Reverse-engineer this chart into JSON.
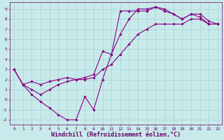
{
  "xlabel": "Windchill (Refroidissement éolien,°C)",
  "ylabel": "",
  "xlim": [
    -0.5,
    23.5
  ],
  "ylim": [
    -2.5,
    9.7
  ],
  "xticks": [
    0,
    1,
    2,
    3,
    4,
    5,
    6,
    7,
    8,
    9,
    10,
    11,
    12,
    13,
    14,
    15,
    16,
    17,
    18,
    19,
    20,
    21,
    22,
    23
  ],
  "yticks": [
    -2,
    -1,
    0,
    1,
    2,
    3,
    4,
    5,
    6,
    7,
    8,
    9
  ],
  "background_color": "#c8eaea",
  "grid_color": "#a0cccc",
  "line_color": "#880088",
  "marker": "D",
  "markersize": 1.8,
  "linewidth": 0.8,
  "tick_fontsize": 4.5,
  "xlabel_fontsize": 6.0,
  "tick_color": "#660066",
  "axis_color": "#660066",
  "x_data1": [
    0,
    1,
    2,
    3,
    4,
    5,
    6,
    7,
    8,
    9,
    10,
    11,
    12,
    13,
    14,
    15,
    16,
    17,
    18,
    19,
    20,
    21,
    22,
    23
  ],
  "y_data1": [
    3.0,
    1.5,
    0.5,
    -0.2,
    -0.8,
    -1.5,
    -2.0,
    -2.0,
    0.3,
    -1.0,
    2.0,
    4.5,
    8.8,
    8.8,
    8.8,
    8.8,
    9.2,
    8.8,
    8.5,
    8.0,
    8.5,
    8.2,
    7.5,
    7.5
  ],
  "x_data2": [
    0,
    1,
    2,
    3,
    4,
    5,
    6,
    7,
    8,
    9,
    10,
    11,
    12,
    13,
    14,
    15,
    16,
    17,
    18,
    19,
    20,
    21,
    22,
    23
  ],
  "y_data2": [
    3.0,
    1.5,
    1.8,
    1.5,
    1.8,
    2.0,
    2.2,
    2.0,
    2.2,
    2.5,
    4.8,
    4.5,
    6.5,
    8.0,
    9.0,
    9.0,
    9.2,
    9.0,
    8.5,
    8.0,
    8.5,
    8.5,
    7.8,
    7.5
  ],
  "x_data3": [
    0,
    1,
    2,
    3,
    4,
    5,
    6,
    7,
    8,
    9,
    10,
    11,
    12,
    13,
    14,
    15,
    16,
    17,
    18,
    19,
    20,
    21,
    22,
    23
  ],
  "y_data3": [
    3.0,
    1.5,
    1.0,
    0.5,
    1.0,
    1.5,
    1.8,
    2.0,
    2.0,
    2.2,
    3.0,
    3.5,
    4.5,
    5.5,
    6.5,
    7.0,
    7.5,
    7.5,
    7.5,
    7.5,
    8.0,
    8.0,
    7.5,
    7.5
  ]
}
